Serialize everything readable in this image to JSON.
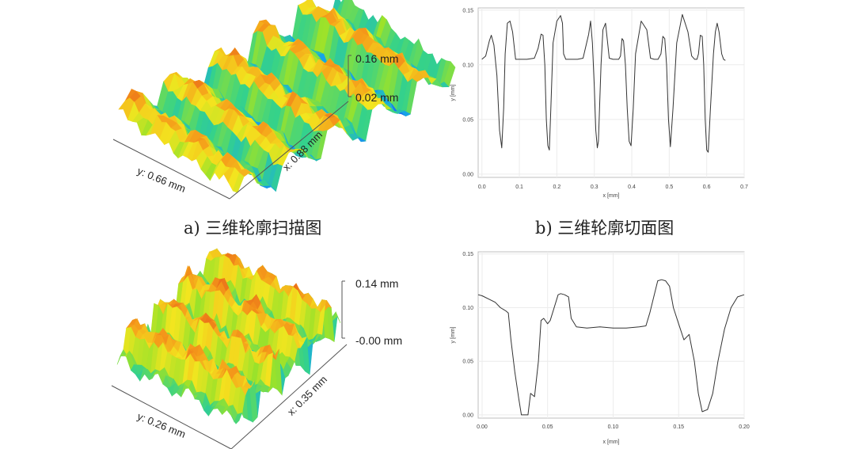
{
  "captions": {
    "a": "a)  三维轮廓扫描图",
    "b": "b)  三维轮廓切面图"
  },
  "surfaces": [
    {
      "z_max_label": "0.16 mm",
      "z_min_label": "0.02 mm",
      "x_axis_label": "x: 0.88 mm",
      "y_axis_label": "y: 0.66 mm",
      "ridge_count": 5,
      "colormap": [
        "#1f3cff",
        "#17a9e6",
        "#35d28a",
        "#9be22a",
        "#f3e51f",
        "#f59b1a",
        "#e0421a"
      ]
    },
    {
      "z_max_label": "0.14 mm",
      "z_min_label": "-0.00 mm",
      "x_axis_label": "x: 0.35 mm",
      "y_axis_label": "y: 0.26 mm",
      "ridge_count": 4,
      "colormap": [
        "#1f3cff",
        "#17a9e6",
        "#35d28a",
        "#9be22a",
        "#f3e51f",
        "#f59b1a",
        "#e0421a"
      ]
    }
  ],
  "chart_data": [
    {
      "type": "line",
      "xlabel": "x [mm]",
      "ylabel": "y [mm]",
      "xlim": [
        -0.01,
        0.7
      ],
      "ylim": [
        -0.003,
        0.152
      ],
      "xticks": [
        "0.0",
        "0.1",
        "0.2",
        "0.3",
        "0.4",
        "0.5",
        "0.6",
        "0.7"
      ],
      "xtick_values": [
        0.0,
        0.1,
        0.2,
        0.3,
        0.4,
        0.5,
        0.6,
        0.7
      ],
      "yticks": [
        "0.00",
        "0.05",
        "0.10",
        "0.15"
      ],
      "ytick_values": [
        0.0,
        0.05,
        0.1,
        0.15
      ],
      "grid": true,
      "series": [
        {
          "color": "#333333",
          "x": [
            0.0,
            0.01,
            0.02,
            0.025,
            0.032,
            0.04,
            0.047,
            0.053,
            0.058,
            0.062,
            0.068,
            0.075,
            0.082,
            0.09,
            0.1,
            0.12,
            0.14,
            0.15,
            0.158,
            0.163,
            0.168,
            0.172,
            0.176,
            0.18,
            0.184,
            0.19,
            0.2,
            0.21,
            0.215,
            0.218,
            0.224,
            0.23,
            0.24,
            0.255,
            0.27,
            0.285,
            0.29,
            0.295,
            0.3,
            0.304,
            0.308,
            0.311,
            0.314,
            0.318,
            0.323,
            0.33,
            0.34,
            0.35,
            0.365,
            0.37,
            0.374,
            0.378,
            0.383,
            0.388,
            0.393,
            0.398,
            0.404,
            0.41,
            0.425,
            0.44,
            0.45,
            0.46,
            0.47,
            0.478,
            0.483,
            0.488,
            0.493,
            0.498,
            0.503,
            0.51,
            0.52,
            0.535,
            0.55,
            0.56,
            0.568,
            0.574,
            0.578,
            0.583,
            0.588,
            0.592,
            0.596,
            0.6,
            0.604,
            0.61,
            0.618,
            0.623,
            0.628,
            0.633,
            0.64,
            0.645,
            0.65
          ],
          "y": [
            0.105,
            0.108,
            0.122,
            0.127,
            0.118,
            0.09,
            0.04,
            0.024,
            0.06,
            0.11,
            0.138,
            0.14,
            0.13,
            0.105,
            0.105,
            0.105,
            0.106,
            0.115,
            0.128,
            0.127,
            0.1,
            0.05,
            0.026,
            0.022,
            0.06,
            0.12,
            0.14,
            0.145,
            0.138,
            0.11,
            0.105,
            0.105,
            0.105,
            0.105,
            0.106,
            0.128,
            0.14,
            0.12,
            0.08,
            0.04,
            0.024,
            0.03,
            0.06,
            0.1,
            0.132,
            0.138,
            0.106,
            0.105,
            0.105,
            0.108,
            0.124,
            0.122,
            0.1,
            0.06,
            0.03,
            0.026,
            0.06,
            0.11,
            0.14,
            0.132,
            0.106,
            0.105,
            0.105,
            0.11,
            0.126,
            0.124,
            0.1,
            0.05,
            0.025,
            0.06,
            0.12,
            0.146,
            0.13,
            0.108,
            0.105,
            0.105,
            0.11,
            0.127,
            0.126,
            0.1,
            0.05,
            0.022,
            0.02,
            0.06,
            0.11,
            0.13,
            0.138,
            0.13,
            0.11,
            0.105,
            0.104
          ]
        }
      ]
    },
    {
      "type": "line",
      "xlabel": "x [mm]",
      "ylabel": "y [mm]",
      "xlim": [
        -0.003,
        0.2
      ],
      "ylim": [
        -0.003,
        0.152
      ],
      "xticks": [
        "0.00",
        "0.05",
        "0.10",
        "0.15",
        "0.20"
      ],
      "xtick_values": [
        0.0,
        0.05,
        0.1,
        0.15,
        0.2
      ],
      "yticks": [
        "0.00",
        "0.05",
        "0.10",
        "0.15"
      ],
      "ytick_values": [
        0.0,
        0.05,
        0.1,
        0.15
      ],
      "grid": true,
      "series": [
        {
          "color": "#333333",
          "x": [
            -0.003,
            0.0,
            0.005,
            0.01,
            0.014,
            0.018,
            0.02,
            0.022,
            0.025,
            0.028,
            0.03,
            0.033,
            0.035,
            0.037,
            0.04,
            0.043,
            0.045,
            0.047,
            0.05,
            0.052,
            0.055,
            0.058,
            0.06,
            0.063,
            0.066,
            0.068,
            0.072,
            0.08,
            0.09,
            0.1,
            0.11,
            0.12,
            0.125,
            0.128,
            0.131,
            0.134,
            0.137,
            0.14,
            0.143,
            0.146,
            0.15,
            0.154,
            0.158,
            0.162,
            0.165,
            0.168,
            0.172,
            0.176,
            0.18,
            0.185,
            0.19,
            0.195,
            0.2
          ],
          "y": [
            0.112,
            0.111,
            0.108,
            0.105,
            0.1,
            0.097,
            0.095,
            0.07,
            0.04,
            0.015,
            0.0,
            0.0,
            0.0,
            0.02,
            0.017,
            0.05,
            0.088,
            0.09,
            0.085,
            0.088,
            0.1,
            0.112,
            0.113,
            0.112,
            0.11,
            0.09,
            0.082,
            0.081,
            0.082,
            0.081,
            0.081,
            0.082,
            0.083,
            0.095,
            0.11,
            0.125,
            0.126,
            0.125,
            0.12,
            0.1,
            0.085,
            0.07,
            0.075,
            0.05,
            0.02,
            0.003,
            0.005,
            0.02,
            0.05,
            0.08,
            0.1,
            0.11,
            0.112
          ]
        }
      ]
    }
  ]
}
